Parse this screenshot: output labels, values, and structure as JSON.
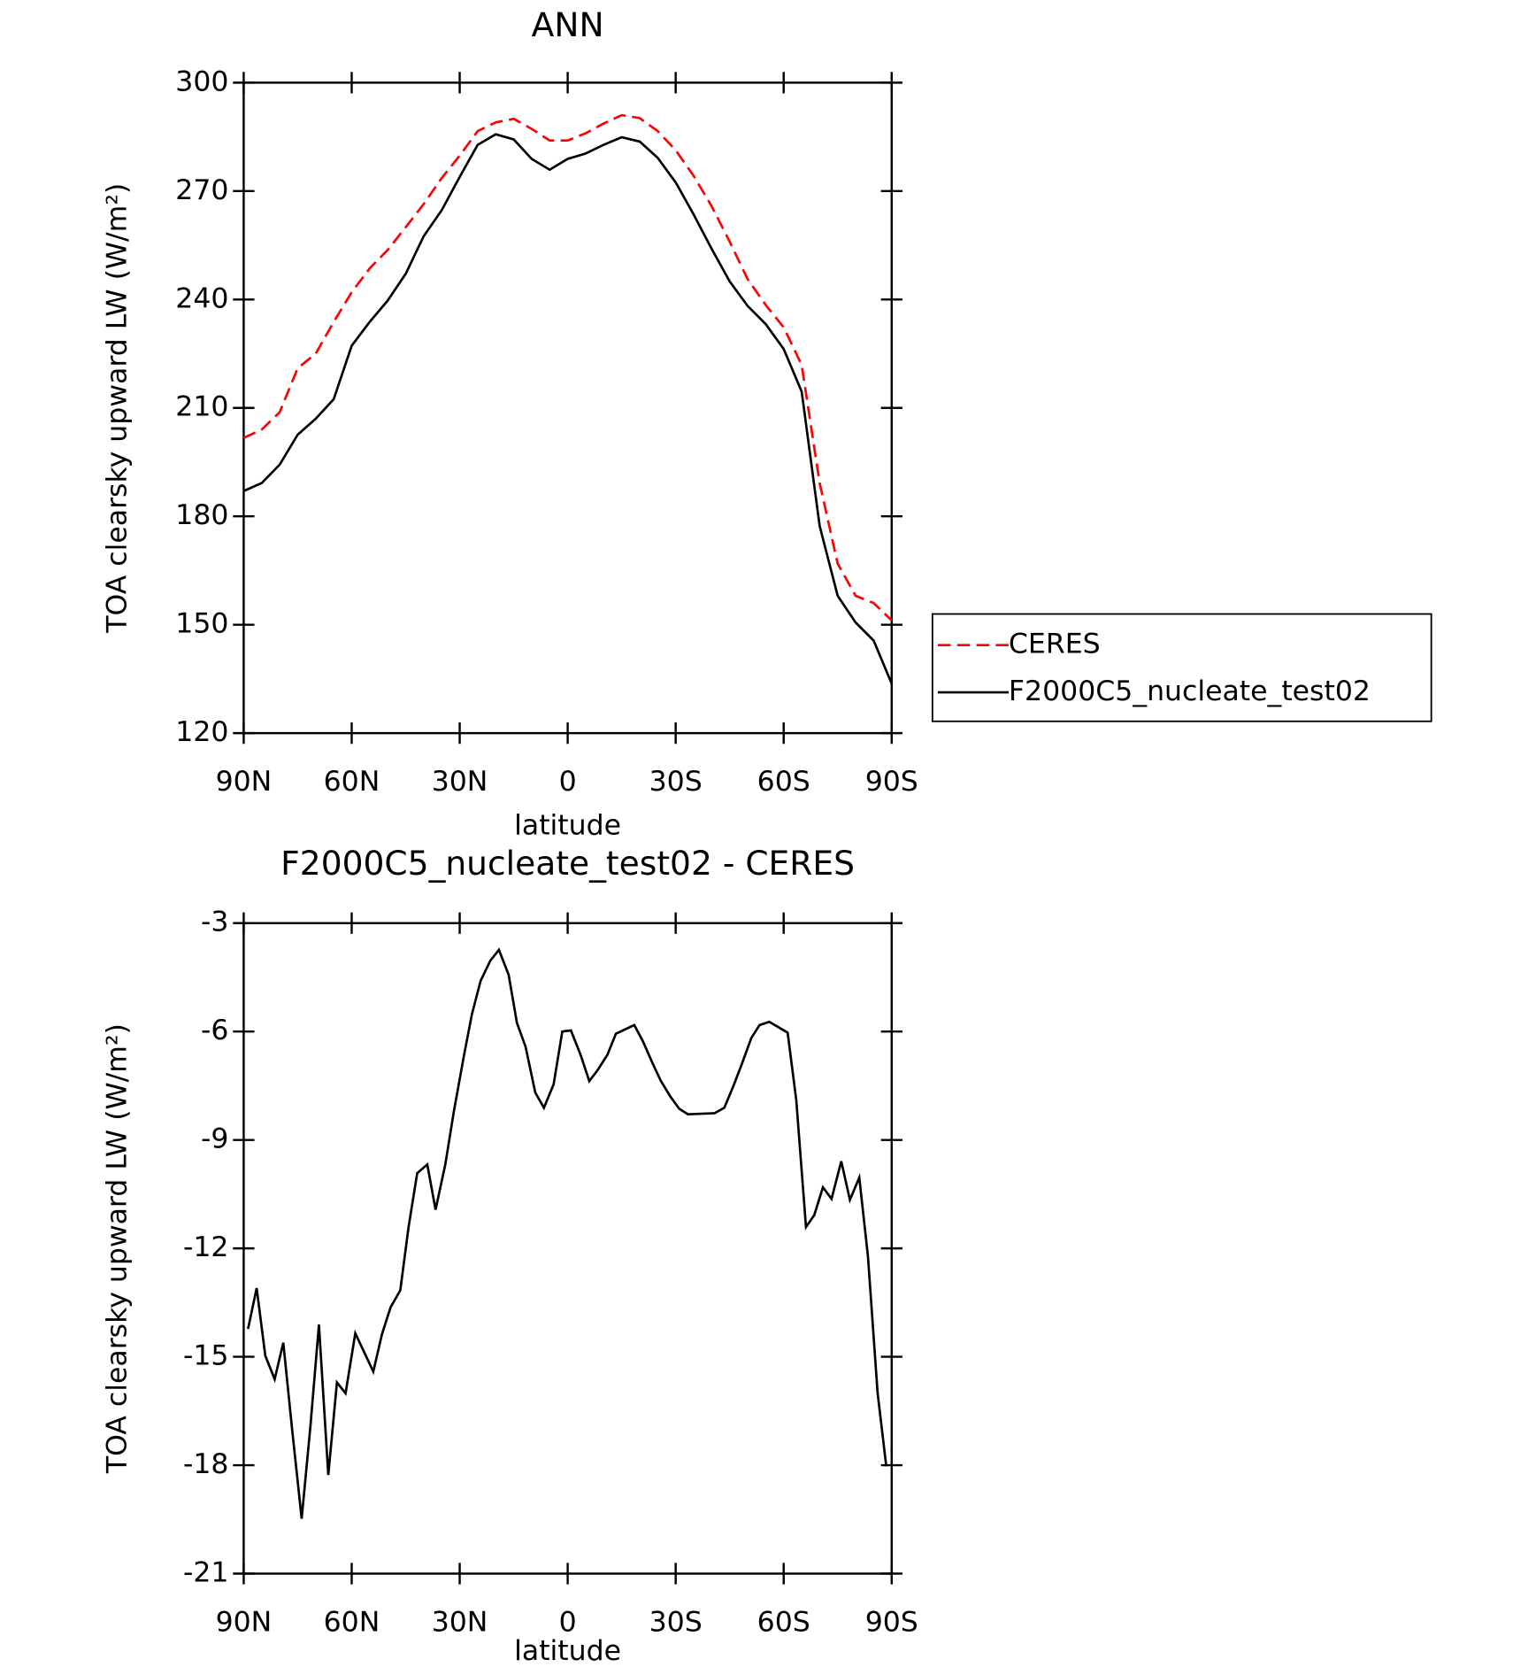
{
  "chart_data": [
    {
      "type": "line",
      "title": "ANN",
      "xlabel": "latitude",
      "ylabel": "TOA clearsky upward LW (W/m²)",
      "x": [
        90,
        85,
        80,
        75,
        70,
        65,
        60,
        55,
        50,
        45,
        40,
        35,
        30,
        25,
        20,
        15,
        10,
        5,
        0,
        -5,
        -10,
        -15,
        -20,
        -25,
        -30,
        -35,
        -40,
        -45,
        -50,
        -55,
        -60,
        -65,
        -70,
        -75,
        -80,
        -85,
        -90
      ],
      "series": [
        {
          "name": "CERES",
          "color": "#ff0000",
          "style": "dashed",
          "values": [
            201.7,
            204,
            208.8,
            221,
            225,
            233.8,
            242,
            248.6,
            253.7,
            260,
            266.4,
            273.6,
            279.8,
            286.6,
            289,
            290,
            287.2,
            284,
            284,
            286,
            288.7,
            291,
            290.2,
            286.6,
            281.3,
            274.2,
            265.8,
            256,
            245.6,
            238.5,
            232.3,
            221.9,
            189.2,
            166.9,
            158,
            156,
            151.2
          ]
        },
        {
          "name": "F2000C5_nucleate_test02",
          "color": "#000000",
          "style": "solid",
          "values": [
            187,
            189.2,
            194.3,
            202.6,
            207,
            212.4,
            227.2,
            233.8,
            239.7,
            247.1,
            257.5,
            264.7,
            273.9,
            282.8,
            285.7,
            284.3,
            278.9,
            275.9,
            278.9,
            280.4,
            282.8,
            284.9,
            283.7,
            279.2,
            272.4,
            263.5,
            254,
            245,
            238.2,
            233.2,
            226.3,
            214.5,
            177.3,
            158,
            150.6,
            145.6,
            133.7
          ]
        }
      ],
      "xlim": [
        90,
        -90
      ],
      "xticks": [
        {
          "value": 90,
          "label": "90N"
        },
        {
          "value": 60,
          "label": "60N"
        },
        {
          "value": 30,
          "label": "30N"
        },
        0,
        {
          "value": -30,
          "label": "30S"
        },
        {
          "value": -60,
          "label": "60S"
        },
        {
          "value": -90,
          "label": "90S"
        }
      ],
      "ylim": [
        120,
        300
      ],
      "yticks": [
        120,
        150,
        180,
        210,
        240,
        270,
        300
      ],
      "legend": "outside-right"
    },
    {
      "type": "line",
      "title": "F2000C5_nucleate_test02 - CERES",
      "xlabel": "latitude",
      "ylabel": "TOA clearsky upward LW (W/m²)",
      "x": [
        88.8,
        86.4,
        84.0,
        81.4,
        79.0,
        76.6,
        73.9,
        71.5,
        69.1,
        66.5,
        64.1,
        61.7,
        59.0,
        54.0,
        51.6,
        49.2,
        46.5,
        44.2,
        41.8,
        39.0,
        36.7,
        34.0,
        31.6,
        28.9,
        26.6,
        24.2,
        21.5,
        19.1,
        16.4,
        14.1,
        11.7,
        9.0,
        6.6,
        3.9,
        1.5,
        -0.9,
        -3.6,
        -6.0,
        -8.3,
        -11.0,
        -13.4,
        -18.5,
        -20.9,
        -23.5,
        -25.9,
        -28.6,
        -31.0,
        -33.4,
        -40.8,
        -43.5,
        -45.9,
        -48.3,
        -51.0,
        -53.3,
        -56.0,
        -61.1,
        -63.5,
        -66.2,
        -68.5,
        -70.9,
        -73.3,
        -76.0,
        -78.4,
        -81.0,
        -83.4,
        -86.1,
        -88.5
      ],
      "series": [
        {
          "name": "F2000C5_nucleate_test02 - CERES",
          "color": "#000000",
          "style": "solid",
          "values": [
            -14.23,
            -13.1,
            -14.97,
            -15.62,
            -14.61,
            -16.96,
            -19.48,
            -16.96,
            -14.11,
            -18.27,
            -15.71,
            -16.01,
            -14.35,
            -15.41,
            -14.38,
            -13.63,
            -13.16,
            -11.41,
            -9.92,
            -9.68,
            -10.93,
            -9.68,
            -8.2,
            -6.71,
            -5.52,
            -4.6,
            -4.04,
            -3.74,
            -4.43,
            -5.76,
            -6.42,
            -7.69,
            -8.11,
            -7.46,
            -6.0,
            -5.97,
            -6.65,
            -7.37,
            -7.07,
            -6.65,
            -6.06,
            -5.82,
            -6.27,
            -6.86,
            -7.37,
            -7.81,
            -8.14,
            -8.29,
            -8.26,
            -8.11,
            -7.54,
            -6.92,
            -6.18,
            -5.82,
            -5.73,
            -6.03,
            -7.9,
            -11.41,
            -11.08,
            -10.31,
            -10.63,
            -9.59,
            -10.66,
            -10.04,
            -12.21,
            -16.01,
            -18.03
          ]
        }
      ],
      "xlim": [
        90,
        -90
      ],
      "xticks": [
        {
          "value": 90,
          "label": "90N"
        },
        {
          "value": 60,
          "label": "60N"
        },
        {
          "value": 30,
          "label": "30N"
        },
        0,
        {
          "value": -30,
          "label": "30S"
        },
        {
          "value": -60,
          "label": "60S"
        },
        {
          "value": -90,
          "label": "90S"
        }
      ],
      "ylim": [
        -21,
        -3
      ],
      "yticks": [
        -21,
        -18,
        -15,
        -12,
        -9,
        -6,
        -3
      ]
    }
  ]
}
